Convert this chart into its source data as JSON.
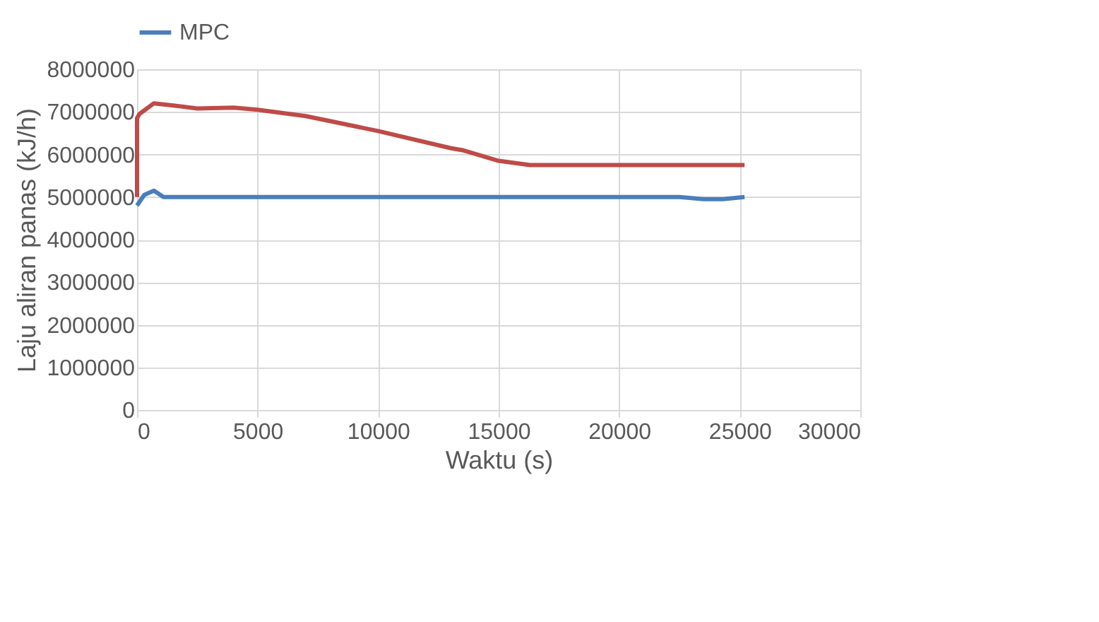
{
  "chart_data": {
    "type": "line",
    "xlabel": "Waktu (s)",
    "ylabel": "Laju aliran panas (kJ/h)",
    "xlim": [
      0,
      30000
    ],
    "xticks": [
      0,
      5000,
      10000,
      15000,
      20000,
      25000,
      30000
    ],
    "ylim": [
      0,
      8000000
    ],
    "yticks": [
      0,
      1000000,
      2000000,
      3000000,
      4000000,
      5000000,
      6000000,
      7000000,
      8000000
    ],
    "grid": true,
    "legend": "top",
    "marker": "none",
    "line_style": "solid",
    "series": [
      {
        "name": "MPC",
        "color": "#4a7ebb",
        "x": [
          0,
          300,
          700,
          1100,
          5000,
          10000,
          15000,
          20000,
          22500,
          23500,
          24300,
          25200
        ],
        "values": [
          4800000,
          5050000,
          5150000,
          5000000,
          5000000,
          5000000,
          5000000,
          5000000,
          5000000,
          4950000,
          4950000,
          5000000
        ]
      },
      {
        "color": "#be4b48",
        "x": [
          0,
          0,
          100,
          700,
          1500,
          2500,
          4000,
          5000,
          7000,
          10000,
          13000,
          13500,
          15000,
          16300,
          20000,
          25200
        ],
        "values": [
          5000000,
          6850000,
          6950000,
          7200000,
          7150000,
          7080000,
          7100000,
          7050000,
          6900000,
          6550000,
          6150000,
          6100000,
          5850000,
          5750000,
          5750000,
          5750000
        ]
      }
    ]
  }
}
